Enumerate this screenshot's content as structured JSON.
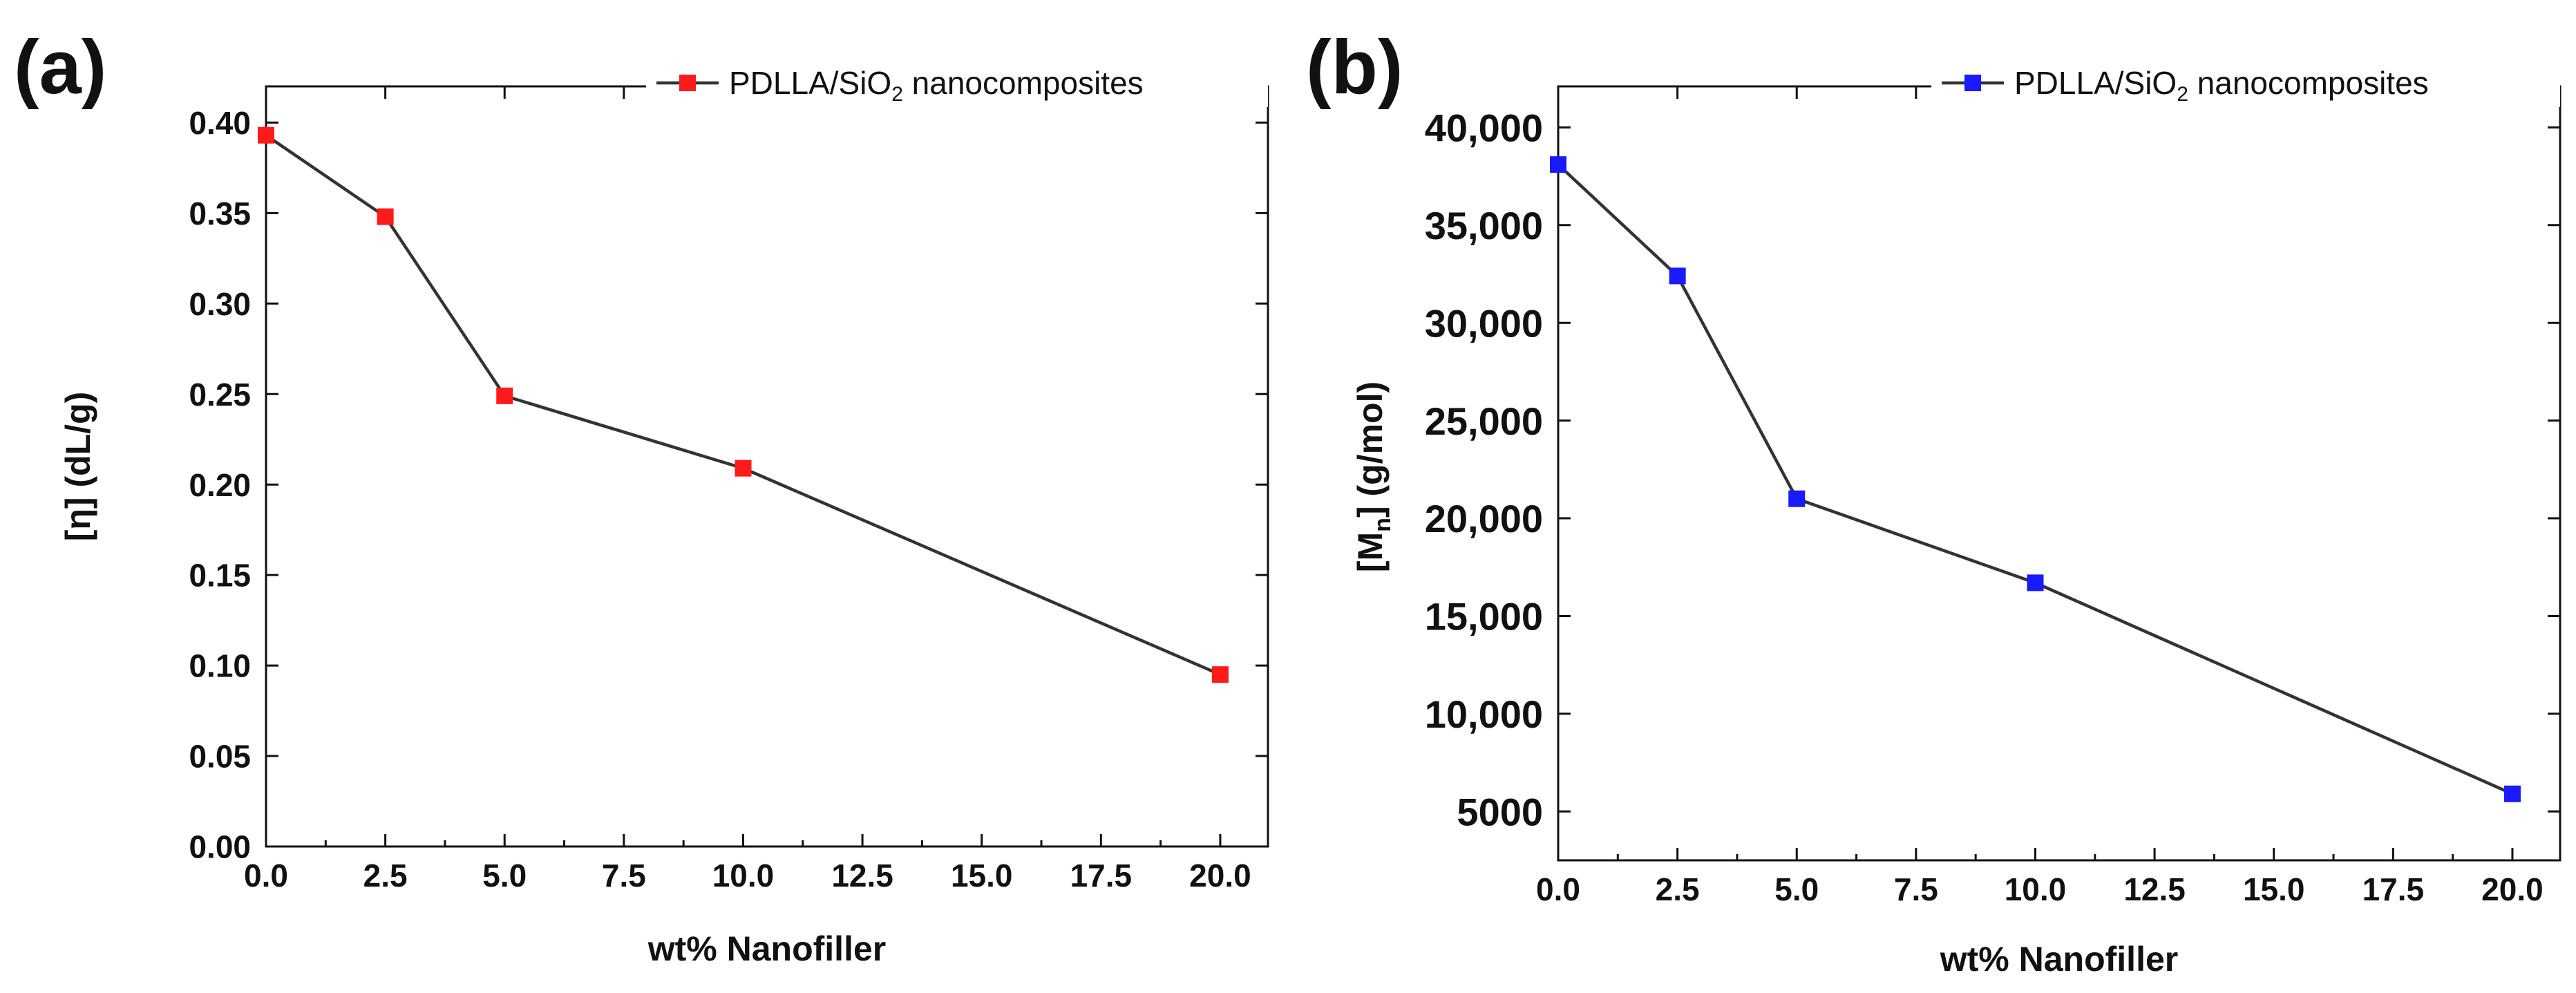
{
  "colors": {
    "marker_a": "#ff1a1a",
    "marker_b": "#1a1aff",
    "line": "#333333",
    "axis": "#111111"
  },
  "chart_data": [
    {
      "type": "line",
      "panel_label": "(a)",
      "x": [
        0,
        2.5,
        5,
        10,
        20
      ],
      "series": [
        {
          "name": "PDLLA/SiO2 nanocomposites",
          "values": [
            0.393,
            0.348,
            0.249,
            0.209,
            0.095
          ],
          "marker": "square",
          "color": "#ff1a1a"
        }
      ],
      "legend": {
        "prefix": "PDLLA/SiO",
        "sub": "2",
        "suffix": " nanocomposites",
        "position": "top-right"
      },
      "xlabel": "wt% Nanofiller",
      "ylabel": "[η] (dL/g)",
      "xlim": [
        0,
        21
      ],
      "ylim": [
        0,
        0.42
      ],
      "xticks": [
        0,
        2.5,
        5,
        7.5,
        10,
        12.5,
        15,
        17.5,
        20
      ],
      "xtick_labels": [
        "0.0",
        "2.5",
        "5.0",
        "7.5",
        "10.0",
        "12.5",
        "15.0",
        "17.5",
        "20.0"
      ],
      "yticks": [
        0,
        0.05,
        0.1,
        0.15,
        0.2,
        0.25,
        0.3,
        0.35,
        0.4
      ],
      "ytick_labels": [
        "0.00",
        "0.05",
        "0.10",
        "0.15",
        "0.20",
        "0.25",
        "0.30",
        "0.35",
        "0.40"
      ],
      "grid": false
    },
    {
      "type": "line",
      "panel_label": "(b)",
      "x": [
        0,
        2.5,
        5,
        10,
        20
      ],
      "series": [
        {
          "name": "PDLLA/SiO2 nanocomposites",
          "values": [
            38100,
            32400,
            21000,
            16700,
            5900
          ],
          "marker": "square",
          "color": "#1a1aff"
        }
      ],
      "legend": {
        "prefix": "PDLLA/SiO",
        "sub": "2",
        "suffix": " nanocomposites",
        "position": "top-right"
      },
      "xlabel": "wt% Nanofiller",
      "ylabel_prefix": "[M",
      "ylabel_sub": "n",
      "ylabel_suffix": "] (g/mol)",
      "xlim": [
        0,
        21
      ],
      "ylim": [
        2500,
        42100
      ],
      "xticks": [
        0,
        2.5,
        5,
        7.5,
        10,
        12.5,
        15,
        17.5,
        20
      ],
      "xtick_labels": [
        "0.0",
        "2.5",
        "5.0",
        "7.5",
        "10.0",
        "12.5",
        "15.0",
        "17.5",
        "20.0"
      ],
      "yticks": [
        5000,
        10000,
        15000,
        20000,
        25000,
        30000,
        35000,
        40000
      ],
      "ytick_labels": [
        "5000",
        "10,000",
        "15,000",
        "20,000",
        "25,000",
        "30,000",
        "35,000",
        "40,000"
      ],
      "grid": false
    }
  ]
}
